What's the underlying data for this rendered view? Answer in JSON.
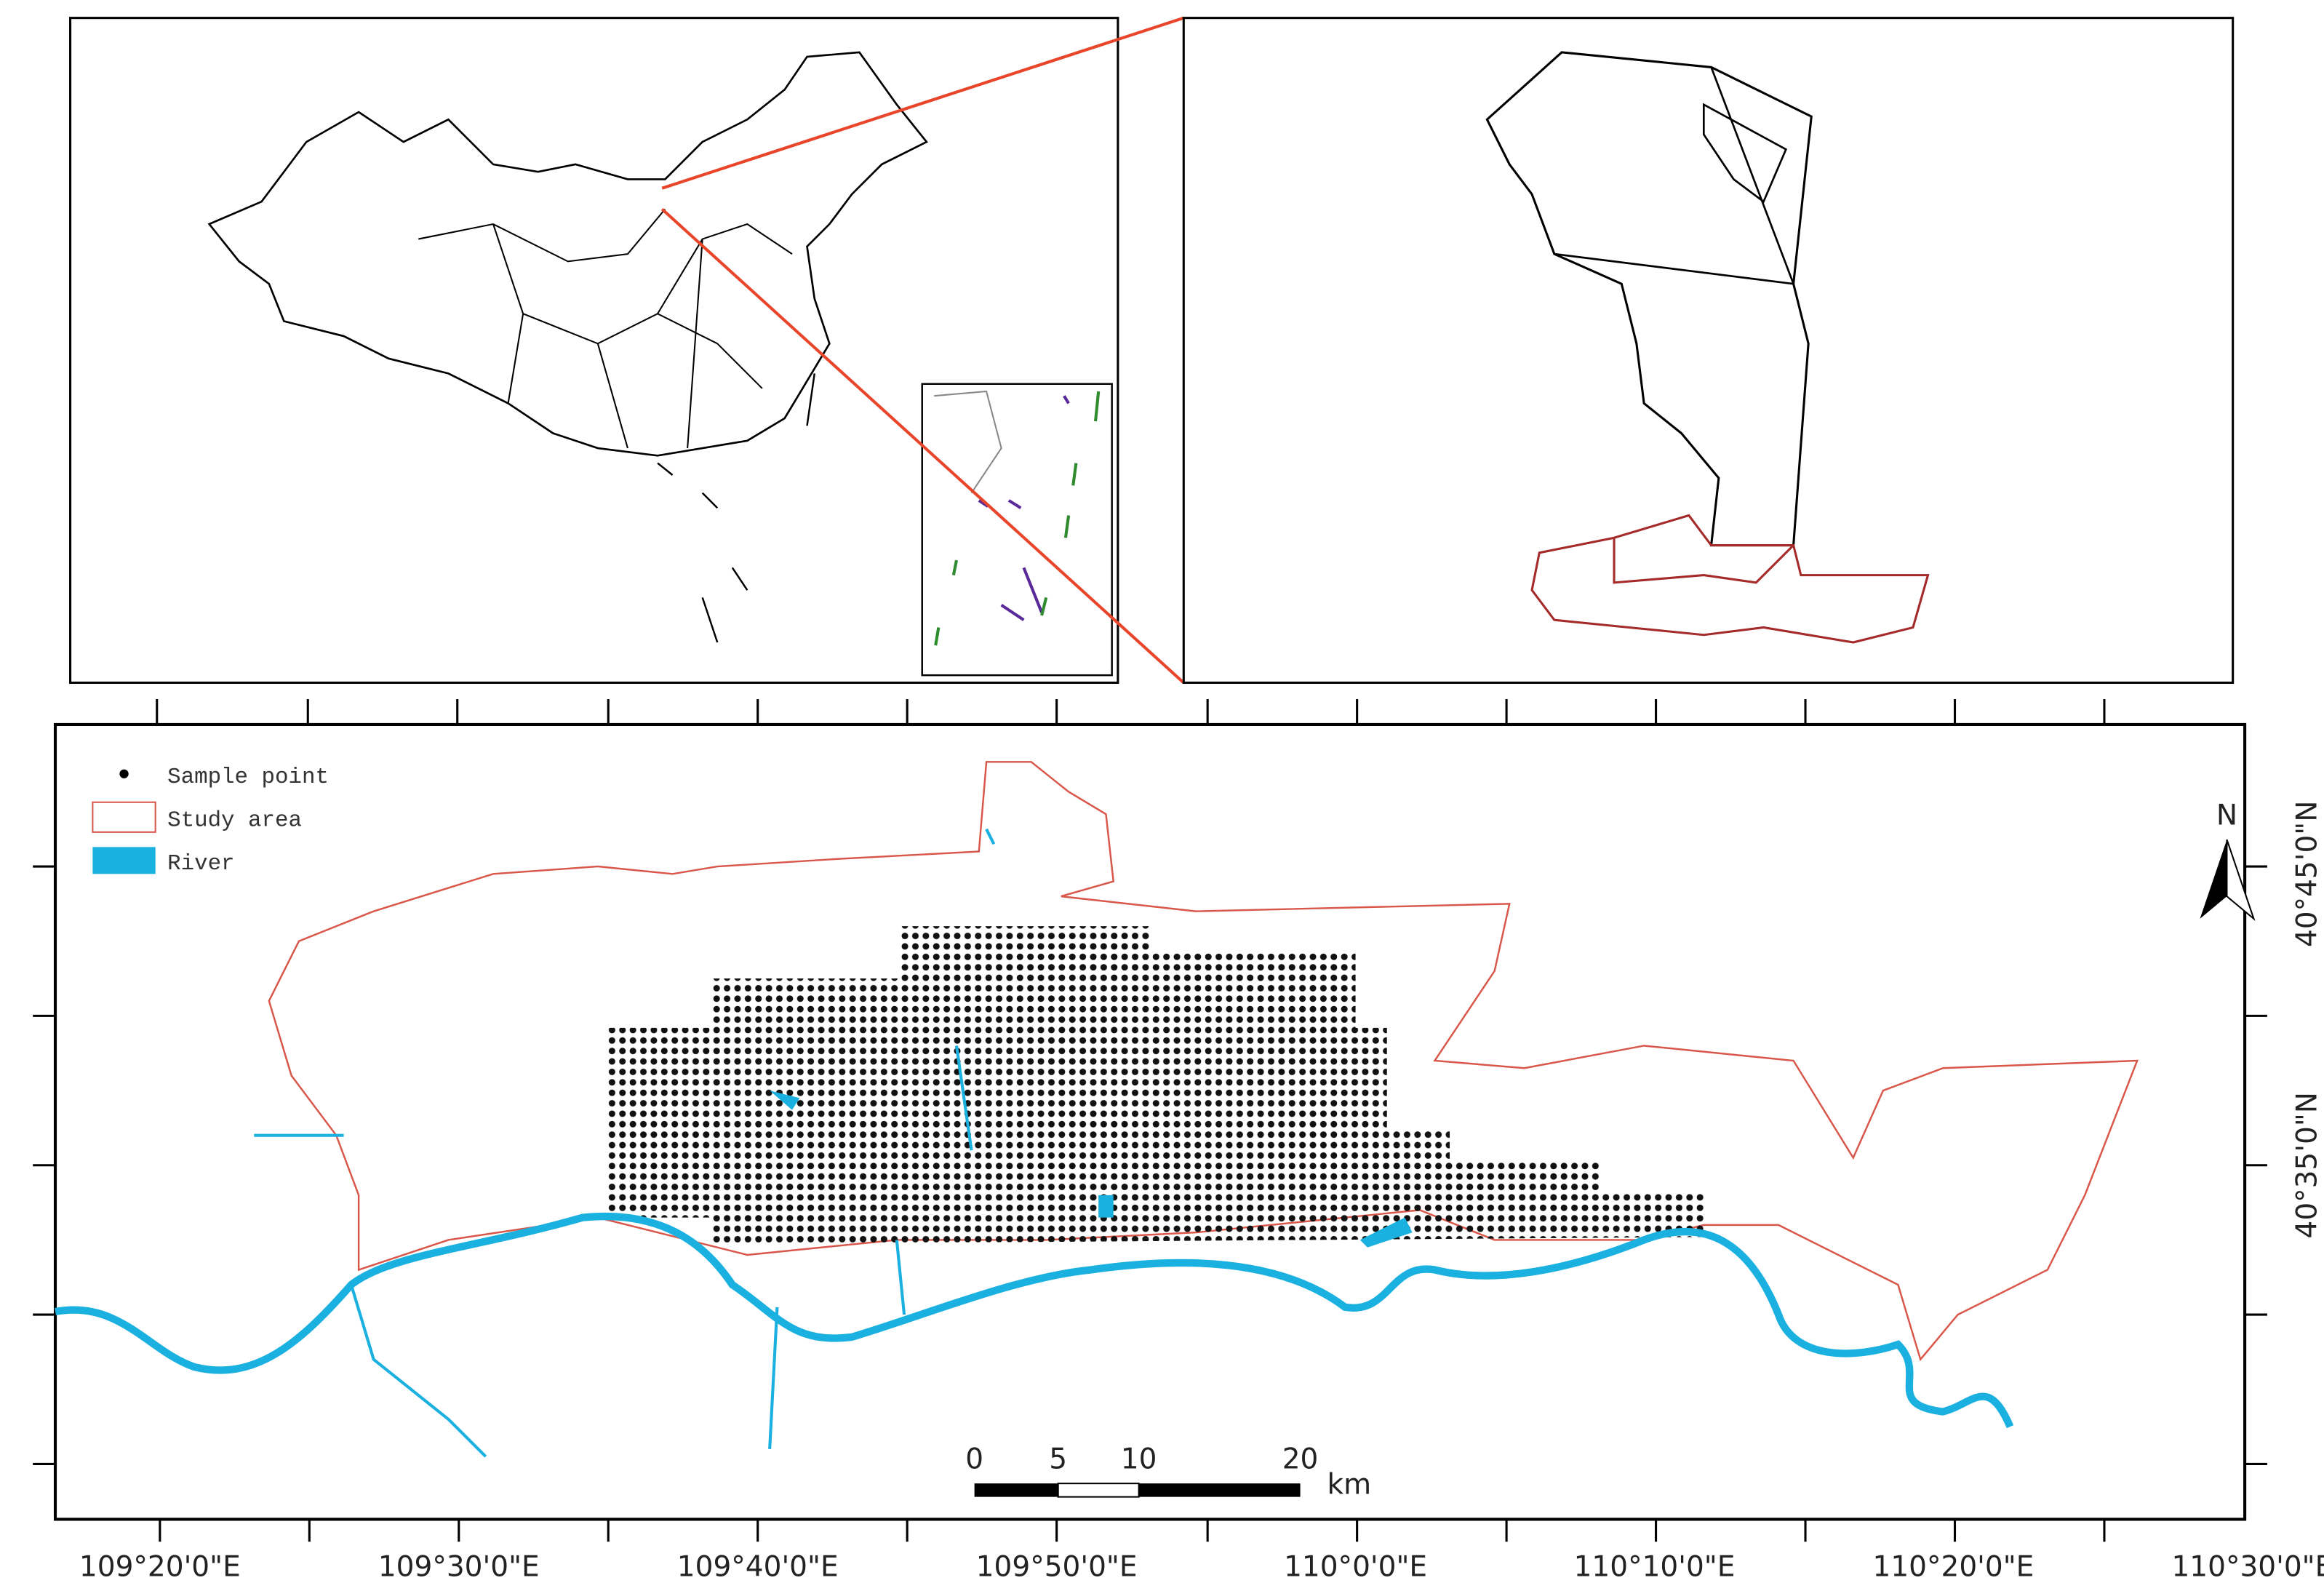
{
  "legend": {
    "items": [
      {
        "label": "Sample point"
      },
      {
        "label": "Study area"
      },
      {
        "label": "River"
      }
    ]
  },
  "x_axis": {
    "labels": [
      "109°20'0\"E",
      "109°30'0\"E",
      "109°40'0\"E",
      "109°50'0\"E",
      "110°0'0\"E",
      "110°10'0\"E",
      "110°20'0\"E",
      "110°30'0\"E"
    ]
  },
  "y_axis": {
    "labels": [
      "40°45'0\"N",
      "40°35'0\"N"
    ]
  },
  "scale_bar": {
    "labels": [
      "0",
      "5",
      "10",
      "20"
    ],
    "unit": "km"
  },
  "north_arrow": {
    "label": "N"
  }
}
